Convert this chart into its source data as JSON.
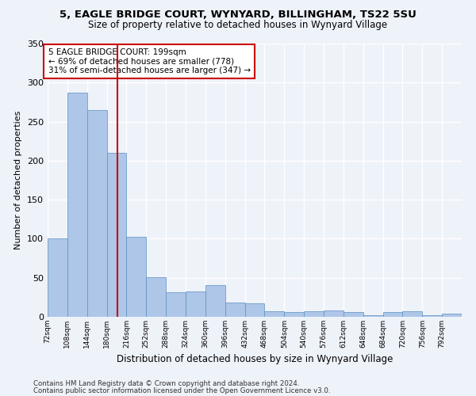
{
  "title1": "5, EAGLE BRIDGE COURT, WYNYARD, BILLINGHAM, TS22 5SU",
  "title2": "Size of property relative to detached houses in Wynyard Village",
  "xlabel": "Distribution of detached houses by size in Wynyard Village",
  "ylabel": "Number of detached properties",
  "bar_color": "#aec6e8",
  "bar_edge_color": "#5a8fc0",
  "vline_color": "#cc0000",
  "vline_x": 199,
  "annotation_text": "5 EAGLE BRIDGE COURT: 199sqm\n← 69% of detached houses are smaller (778)\n31% of semi-detached houses are larger (347) →",
  "annotation_box_color": "#ffffff",
  "annotation_box_edge": "#cc0000",
  "footer1": "Contains HM Land Registry data © Crown copyright and database right 2024.",
  "footer2": "Contains public sector information licensed under the Open Government Licence v3.0.",
  "bin_edges": [
    72,
    108,
    144,
    180,
    216,
    252,
    288,
    324,
    360,
    396,
    432,
    468,
    504,
    540,
    576,
    612,
    648,
    684,
    720,
    756,
    792
  ],
  "bar_heights": [
    100,
    287,
    265,
    210,
    102,
    51,
    31,
    32,
    41,
    18,
    17,
    7,
    6,
    7,
    8,
    6,
    2,
    6,
    7,
    2,
    4
  ],
  "bin_width": 36,
  "ylim": [
    0,
    350
  ],
  "yticks": [
    0,
    50,
    100,
    150,
    200,
    250,
    300,
    350
  ],
  "background_color": "#eef2f9",
  "grid_color": "#ffffff",
  "tick_labels": [
    "72sqm",
    "108sqm",
    "144sqm",
    "180sqm",
    "216sqm",
    "252sqm",
    "288sqm",
    "324sqm",
    "360sqm",
    "396sqm",
    "432sqm",
    "468sqm",
    "504sqm",
    "540sqm",
    "576sqm",
    "612sqm",
    "648sqm",
    "684sqm",
    "720sqm",
    "756sqm",
    "792sqm"
  ]
}
